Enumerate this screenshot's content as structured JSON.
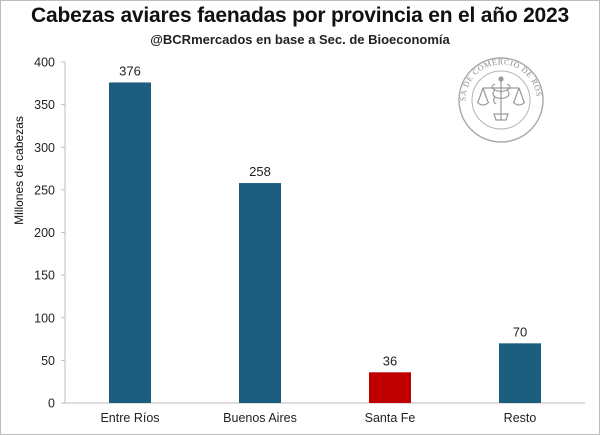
{
  "chart_data": {
    "type": "bar",
    "title": "Cabezas aviares faenadas por provincia en el año 2023",
    "subtitle": "@BCRmercados en base a Sec. de Bioeconomía",
    "xlabel": "",
    "ylabel": "Millones de cabezas",
    "categories": [
      "Entre Ríos",
      "Buenos Aires",
      "Santa Fe",
      "Resto"
    ],
    "values": [
      376,
      258,
      36,
      70
    ],
    "bar_colors": [
      "#1b5e80",
      "#1b5e80",
      "#c00000",
      "#1b5e80"
    ],
    "ylim": [
      0,
      400
    ],
    "yticks": [
      0,
      50,
      100,
      150,
      200,
      250,
      300,
      350,
      400
    ],
    "grid": false
  },
  "watermark": {
    "text": "BOLSA DE COMERCIO DE ROSARIO",
    "color": "#9a9a9a"
  }
}
